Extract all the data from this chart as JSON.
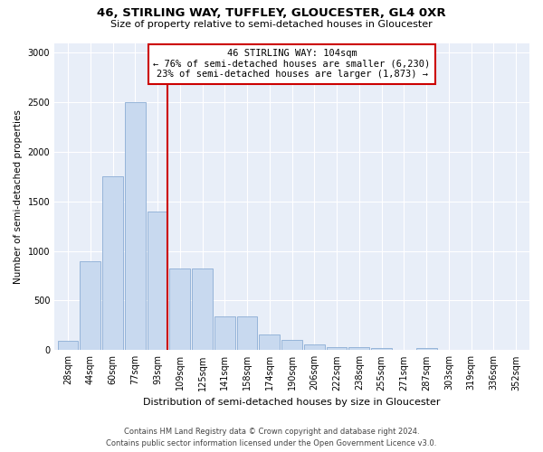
{
  "title1": "46, STIRLING WAY, TUFFLEY, GLOUCESTER, GL4 0XR",
  "title2": "Size of property relative to semi-detached houses in Gloucester",
  "xlabel": "Distribution of semi-detached houses by size in Gloucester",
  "ylabel": "Number of semi-detached properties",
  "footer1": "Contains HM Land Registry data © Crown copyright and database right 2024.",
  "footer2": "Contains public sector information licensed under the Open Government Licence v3.0.",
  "annotation_line1": "46 STIRLING WAY: 104sqm",
  "annotation_line2": "← 76% of semi-detached houses are smaller (6,230)",
  "annotation_line3": "23% of semi-detached houses are larger (1,873) →",
  "bar_color": "#c8d9ef",
  "bar_edge_color": "#8badd4",
  "line_color": "#cc0000",
  "background_color": "#e8eef8",
  "grid_color": "#ffffff",
  "categories": [
    "28sqm",
    "44sqm",
    "60sqm",
    "77sqm",
    "93sqm",
    "109sqm",
    "125sqm",
    "141sqm",
    "158sqm",
    "174sqm",
    "190sqm",
    "206sqm",
    "222sqm",
    "238sqm",
    "255sqm",
    "271sqm",
    "287sqm",
    "303sqm",
    "319sqm",
    "336sqm",
    "352sqm"
  ],
  "values": [
    90,
    900,
    1750,
    2500,
    1400,
    820,
    820,
    340,
    340,
    160,
    100,
    55,
    30,
    30,
    25,
    5,
    25,
    5,
    5,
    5,
    5
  ],
  "ylim": [
    0,
    3100
  ],
  "yticks": [
    0,
    500,
    1000,
    1500,
    2000,
    2500,
    3000
  ],
  "red_line_bin": 4,
  "title1_fontsize": 9.5,
  "title2_fontsize": 8,
  "ylabel_fontsize": 7.5,
  "xlabel_fontsize": 8,
  "tick_fontsize": 7,
  "annotation_fontsize": 7.5,
  "footer_fontsize": 6
}
